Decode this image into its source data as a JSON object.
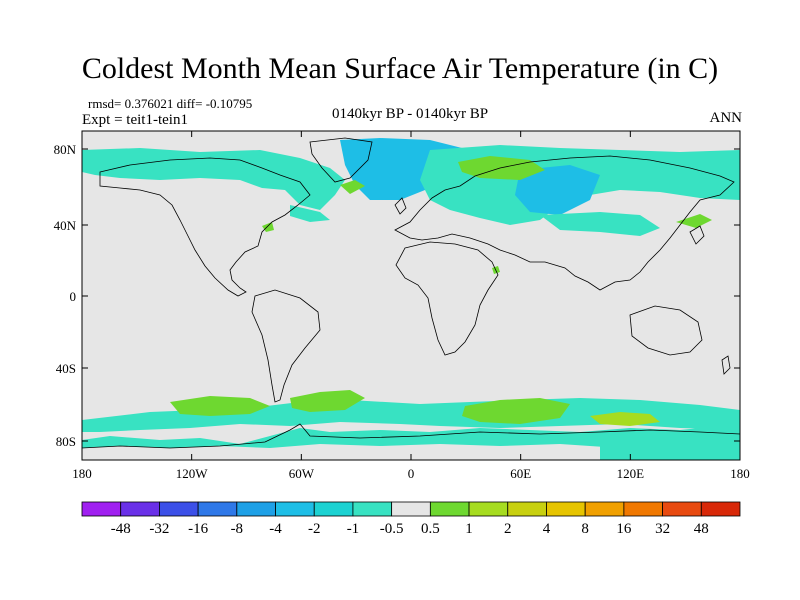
{
  "title": "Coldest Month Mean Surface Air Temperature (in C)",
  "stats": "rmsd= 0.376021 diff= -0.10795",
  "experiment": "Expt = teit1-tein1",
  "period": "0140kyr BP - 0140kyr BP",
  "season": "ANN",
  "map": {
    "x_ticks": [
      "180",
      "120W",
      "60W",
      "0",
      "60E",
      "120E",
      "180"
    ],
    "y_ticks": [
      "80N",
      "40N",
      "0",
      "40S",
      "80S"
    ],
    "background_color": "#e6e6e6",
    "coastline_color": "#000000"
  },
  "colorbar": {
    "labels": [
      "-48",
      "-32",
      "-16",
      "-8",
      "-4",
      "-2",
      "-1",
      "-0.5",
      "0.5",
      "1",
      "2",
      "4",
      "8",
      "16",
      "32",
      "48"
    ],
    "colors": [
      "#a020f0",
      "#6a30e8",
      "#3c50e8",
      "#2f78e8",
      "#1ea0e6",
      "#1ebee6",
      "#1cd2d2",
      "#38e2c2",
      "#e6e6e6",
      "#6ed830",
      "#a6dc20",
      "#c8d010",
      "#e6c400",
      "#f0a000",
      "#f07800",
      "#e84a10",
      "#d82808"
    ]
  },
  "anomaly_colors": {
    "cool_light": "#38e2c2",
    "cool": "#1ebee6",
    "warm_light": "#6ed830",
    "warm": "#a6dc20"
  }
}
